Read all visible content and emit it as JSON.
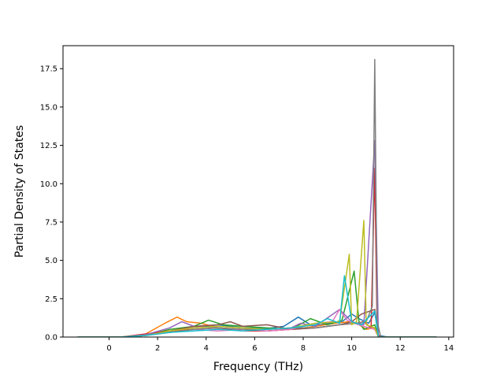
{
  "chart_data": {
    "type": "line",
    "title": "",
    "xlabel": "Frequency (THz)",
    "ylabel": "Partial Density of States",
    "xlim": [
      -1.9,
      14.2
    ],
    "ylim": [
      0,
      19.0
    ],
    "xticks": [
      0,
      2,
      4,
      6,
      8,
      10,
      12,
      14
    ],
    "xtick_labels": [
      "0",
      "2",
      "4",
      "6",
      "8",
      "10",
      "12",
      "14"
    ],
    "yticks": [
      0,
      2.5,
      5,
      7.5,
      10,
      12.5,
      15,
      17.5
    ],
    "ytick_labels": [
      "0.0",
      "2.5",
      "5.0",
      "7.5",
      "10.0",
      "12.5",
      "15.0",
      "17.5"
    ],
    "grid": false,
    "legend": "none",
    "series": [
      {
        "color": "#1f77b4",
        "x": [
          -1.3,
          0.5,
          1.5,
          2.5,
          3.5,
          4.5,
          5.5,
          6.5,
          7.2,
          7.8,
          8.4,
          9.0,
          9.6,
          10.0,
          10.3,
          10.7,
          10.95,
          11.1,
          11.5,
          13.5
        ],
        "y": [
          0,
          0,
          0.15,
          0.35,
          0.6,
          0.8,
          0.6,
          0.55,
          0.7,
          1.3,
          0.7,
          0.9,
          1.0,
          1.5,
          1.2,
          0.9,
          1.6,
          0.1,
          0,
          0
        ]
      },
      {
        "color": "#ff7f0e",
        "x": [
          -1.3,
          0.5,
          1.5,
          2.3,
          2.8,
          3.2,
          3.8,
          4.5,
          5.5,
          6.5,
          7.5,
          8.5,
          9.3,
          9.9,
          10.3,
          10.6,
          10.95,
          11.1,
          13.5
        ],
        "y": [
          0,
          0,
          0.2,
          0.9,
          1.3,
          1.0,
          0.9,
          0.6,
          0.5,
          0.4,
          0.5,
          0.7,
          0.9,
          1.0,
          0.8,
          0.5,
          0.6,
          0,
          0
        ]
      },
      {
        "color": "#2ca02c",
        "x": [
          -1.3,
          0.5,
          1.5,
          2.5,
          3.5,
          4.1,
          4.7,
          5.5,
          6.5,
          7.5,
          8.3,
          9.0,
          9.6,
          10.1,
          10.3,
          10.5,
          10.95,
          11.1,
          13.5
        ],
        "y": [
          0,
          0,
          0.1,
          0.5,
          0.7,
          1.1,
          0.8,
          0.7,
          0.6,
          0.5,
          1.2,
          0.8,
          1.1,
          4.3,
          1.0,
          0.5,
          0.8,
          0,
          0
        ]
      },
      {
        "color": "#d62728",
        "x": [
          -1.3,
          0.5,
          1.5,
          2.5,
          3.5,
          4.5,
          5.5,
          6.5,
          7.5,
          8.5,
          9.5,
          10.2,
          10.5,
          10.8,
          10.95,
          11.05,
          11.2,
          13.5
        ],
        "y": [
          0,
          0,
          0.2,
          0.4,
          0.5,
          0.6,
          0.4,
          0.4,
          0.5,
          0.6,
          0.8,
          0.9,
          1.0,
          0.6,
          11.0,
          0.2,
          0,
          0
        ]
      },
      {
        "color": "#9467bd",
        "x": [
          -1.3,
          0.5,
          1.5,
          2.5,
          3.0,
          3.5,
          4.5,
          5.5,
          6.5,
          7.5,
          7.9,
          8.5,
          9.5,
          10.0,
          10.5,
          10.95,
          11.1,
          13.5
        ],
        "y": [
          0,
          0,
          0.15,
          0.6,
          1.0,
          0.7,
          0.6,
          0.5,
          0.5,
          0.6,
          0.9,
          0.7,
          1.8,
          1.0,
          0.8,
          12.8,
          0,
          0
        ]
      },
      {
        "color": "#8c564b",
        "x": [
          -1.3,
          0.5,
          1.5,
          2.5,
          3.5,
          4.5,
          5.0,
          5.5,
          6.5,
          7.5,
          8.5,
          9.5,
          10.0,
          10.4,
          10.95,
          11.1,
          13.5
        ],
        "y": [
          0,
          0,
          0.1,
          0.4,
          0.7,
          0.8,
          1.0,
          0.7,
          0.8,
          0.5,
          0.6,
          0.8,
          1.0,
          1.5,
          1.8,
          0,
          0
        ]
      },
      {
        "color": "#e377c2",
        "x": [
          -1.3,
          0.5,
          1.5,
          2.5,
          3.5,
          4.5,
          5.5,
          6.5,
          7.5,
          8.5,
          9.2,
          9.5,
          9.8,
          10.1,
          10.5,
          10.95,
          11.1,
          13.5
        ],
        "y": [
          0,
          0,
          0.1,
          0.3,
          0.5,
          0.4,
          0.5,
          0.4,
          0.5,
          0.9,
          1.0,
          1.8,
          1.1,
          0.9,
          0.7,
          0.5,
          0,
          0
        ]
      },
      {
        "color": "#7f7f7f",
        "x": [
          -1.3,
          0.5,
          1.5,
          2.5,
          3.5,
          4.5,
          5.5,
          6.5,
          7.5,
          8.5,
          9.5,
          10.2,
          10.6,
          10.85,
          10.95,
          11.05,
          11.2,
          13.5
        ],
        "y": [
          0,
          0,
          0.1,
          0.3,
          0.5,
          0.6,
          0.5,
          0.5,
          0.6,
          0.6,
          0.8,
          0.9,
          1.0,
          2.0,
          18.1,
          1.0,
          0,
          0
        ]
      },
      {
        "color": "#bcbd22",
        "x": [
          -1.3,
          0.5,
          1.5,
          2.5,
          3.5,
          4.5,
          5.5,
          6.5,
          7.5,
          8.5,
          9.5,
          9.9,
          10.0,
          10.2,
          10.5,
          10.6,
          10.95,
          11.1,
          13.5
        ],
        "y": [
          0,
          0,
          0.1,
          0.4,
          0.6,
          0.7,
          0.6,
          0.5,
          0.6,
          0.9,
          1.0,
          5.4,
          0.8,
          1.0,
          7.6,
          0.8,
          0.6,
          0,
          0
        ]
      },
      {
        "color": "#17becf",
        "x": [
          -1.3,
          0.5,
          1.5,
          2.5,
          3.5,
          4.5,
          5.5,
          6.5,
          7.5,
          8.5,
          9.0,
          9.5,
          9.7,
          10.0,
          10.4,
          10.95,
          11.1,
          13.5
        ],
        "y": [
          0,
          0,
          0.1,
          0.3,
          0.4,
          0.5,
          0.4,
          0.5,
          0.6,
          0.8,
          1.2,
          0.9,
          4.0,
          1.0,
          0.8,
          1.7,
          0,
          0
        ]
      }
    ]
  }
}
